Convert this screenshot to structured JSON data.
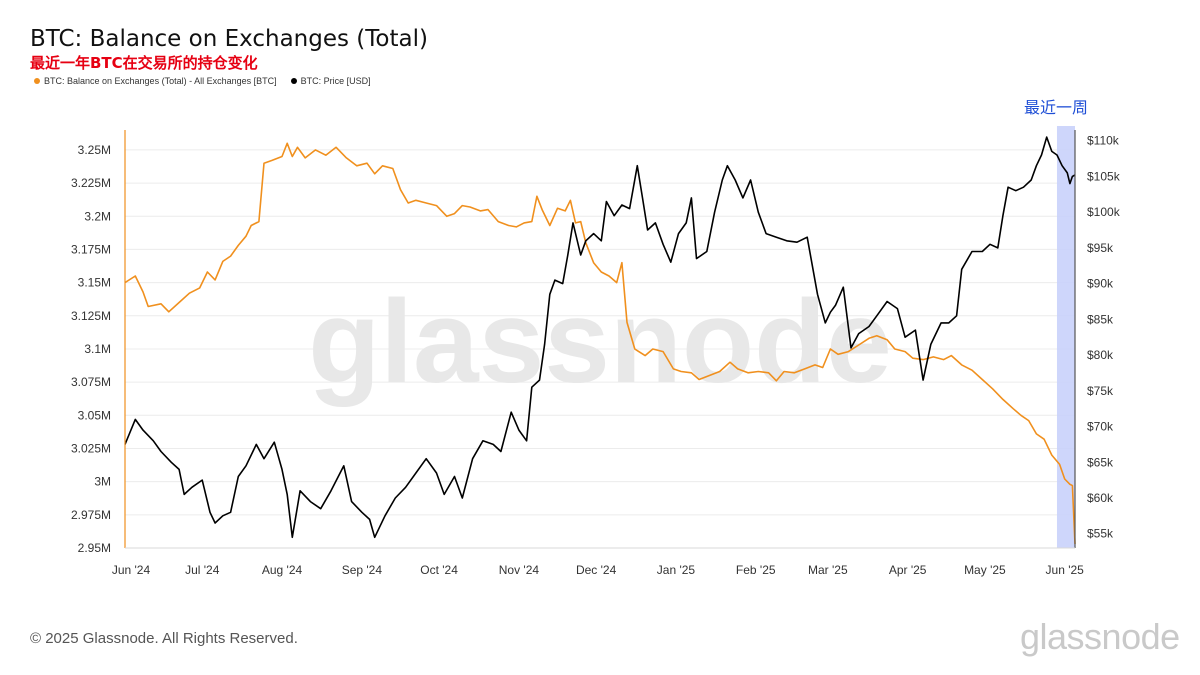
{
  "header": {
    "title": "BTC: Balance on Exchanges (Total)",
    "subtitle": "最近一年BTC在交易所的持仓变化"
  },
  "footer": {
    "copyright": "© 2025 Glassnode. All Rights Reserved.",
    "brand": "glassnode"
  },
  "colors": {
    "balance": "#f0901e",
    "price": "#000000",
    "highlight": "#c9d2fb",
    "annotation": "#1f4fd6"
  },
  "chart_data": {
    "type": "line",
    "title": "BTC: Balance on Exchanges (Total)",
    "subtitle": "最近一年BTC在交易所的持仓变化",
    "watermark": "glassnode",
    "legend_position": "top-left",
    "grid": true,
    "x_labels": [
      "Jun '24",
      "Jul '24",
      "Aug '24",
      "Sep '24",
      "Oct '24",
      "Nov '24",
      "Dec '24",
      "Jan '25",
      "Feb '25",
      "Mar '25",
      "Apr '25",
      "May '25",
      "Jun '25"
    ],
    "x_range": [
      "2024-06-01",
      "2025-06-05"
    ],
    "y_left": {
      "tick_labels": [
        "2.95M",
        "2.975M",
        "3M",
        "3.025M",
        "3.05M",
        "3.075M",
        "3.1M",
        "3.125M",
        "3.15M",
        "3.175M",
        "3.2M",
        "3.225M",
        "3.25M"
      ],
      "ylim": [
        2950000,
        3265000
      ]
    },
    "y_right": {
      "tick_labels": [
        "$55k",
        "$60k",
        "$65k",
        "$70k",
        "$75k",
        "$80k",
        "$85k",
        "$90k",
        "$95k",
        "$100k",
        "$105k",
        "$110k"
      ],
      "ylim": [
        53000,
        111500
      ]
    },
    "annotation": {
      "text": "最近一周",
      "x_start": "2025-05-29",
      "x_end": "2025-06-05"
    },
    "series": [
      {
        "name": "BTC: Balance on Exchanges (Total) - All Exchanges [BTC]",
        "axis": "left",
        "points": [
          [
            "2024-06-01",
            3150000
          ],
          [
            "2024-06-05",
            3155000
          ],
          [
            "2024-06-08",
            3143000
          ],
          [
            "2024-06-10",
            3132000
          ],
          [
            "2024-06-15",
            3134000
          ],
          [
            "2024-06-18",
            3128000
          ],
          [
            "2024-06-22",
            3135000
          ],
          [
            "2024-06-26",
            3142000
          ],
          [
            "2024-06-30",
            3146000
          ],
          [
            "2024-07-03",
            3158000
          ],
          [
            "2024-07-06",
            3152000
          ],
          [
            "2024-07-09",
            3166000
          ],
          [
            "2024-07-12",
            3170000
          ],
          [
            "2024-07-15",
            3178000
          ],
          [
            "2024-07-18",
            3185000
          ],
          [
            "2024-07-20",
            3193000
          ],
          [
            "2024-07-23",
            3196000
          ],
          [
            "2024-07-25",
            3240000
          ],
          [
            "2024-07-28",
            3242000
          ],
          [
            "2024-08-01",
            3245000
          ],
          [
            "2024-08-03",
            3255000
          ],
          [
            "2024-08-05",
            3245000
          ],
          [
            "2024-08-07",
            3252000
          ],
          [
            "2024-08-10",
            3244000
          ],
          [
            "2024-08-14",
            3250000
          ],
          [
            "2024-08-18",
            3246000
          ],
          [
            "2024-08-22",
            3252000
          ],
          [
            "2024-08-26",
            3244000
          ],
          [
            "2024-08-30",
            3238000
          ],
          [
            "2024-09-03",
            3240000
          ],
          [
            "2024-09-06",
            3232000
          ],
          [
            "2024-09-09",
            3238000
          ],
          [
            "2024-09-13",
            3236000
          ],
          [
            "2024-09-16",
            3220000
          ],
          [
            "2024-09-19",
            3210000
          ],
          [
            "2024-09-22",
            3212000
          ],
          [
            "2024-09-26",
            3210000
          ],
          [
            "2024-09-30",
            3208000
          ],
          [
            "2024-10-04",
            3200000
          ],
          [
            "2024-10-07",
            3202000
          ],
          [
            "2024-10-10",
            3208000
          ],
          [
            "2024-10-13",
            3207000
          ],
          [
            "2024-10-17",
            3204000
          ],
          [
            "2024-10-20",
            3205000
          ],
          [
            "2024-10-24",
            3196000
          ],
          [
            "2024-10-28",
            3193000
          ],
          [
            "2024-10-31",
            3192000
          ],
          [
            "2024-11-03",
            3195000
          ],
          [
            "2024-11-06",
            3196000
          ],
          [
            "2024-11-08",
            3215000
          ],
          [
            "2024-11-10",
            3205000
          ],
          [
            "2024-11-13",
            3193000
          ],
          [
            "2024-11-16",
            3206000
          ],
          [
            "2024-11-19",
            3204000
          ],
          [
            "2024-11-21",
            3212000
          ],
          [
            "2024-11-23",
            3195000
          ],
          [
            "2024-11-25",
            3196000
          ],
          [
            "2024-11-27",
            3180000
          ],
          [
            "2024-11-30",
            3165000
          ],
          [
            "2024-12-03",
            3158000
          ],
          [
            "2024-12-06",
            3155000
          ],
          [
            "2024-12-09",
            3150000
          ],
          [
            "2024-12-11",
            3165000
          ],
          [
            "2024-12-13",
            3120000
          ],
          [
            "2024-12-16",
            3100000
          ],
          [
            "2024-12-20",
            3095000
          ],
          [
            "2024-12-23",
            3100000
          ],
          [
            "2024-12-27",
            3098000
          ],
          [
            "2024-12-31",
            3085000
          ],
          [
            "2025-01-03",
            3083000
          ],
          [
            "2025-01-07",
            3082000
          ],
          [
            "2025-01-10",
            3077000
          ],
          [
            "2025-01-14",
            3080000
          ],
          [
            "2025-01-18",
            3083000
          ],
          [
            "2025-01-22",
            3090000
          ],
          [
            "2025-01-25",
            3085000
          ],
          [
            "2025-01-29",
            3082000
          ],
          [
            "2025-02-02",
            3083000
          ],
          [
            "2025-02-06",
            3082000
          ],
          [
            "2025-02-09",
            3076000
          ],
          [
            "2025-02-12",
            3083000
          ],
          [
            "2025-02-16",
            3082000
          ],
          [
            "2025-02-20",
            3085000
          ],
          [
            "2025-02-24",
            3088000
          ],
          [
            "2025-02-27",
            3086000
          ],
          [
            "2025-03-02",
            3100000
          ],
          [
            "2025-03-05",
            3096000
          ],
          [
            "2025-03-09",
            3098000
          ],
          [
            "2025-03-13",
            3103000
          ],
          [
            "2025-03-17",
            3108000
          ],
          [
            "2025-03-20",
            3110000
          ],
          [
            "2025-03-24",
            3107000
          ],
          [
            "2025-03-27",
            3100000
          ],
          [
            "2025-03-31",
            3098000
          ],
          [
            "2025-04-03",
            3093000
          ],
          [
            "2025-04-07",
            3092000
          ],
          [
            "2025-04-11",
            3094000
          ],
          [
            "2025-04-15",
            3092000
          ],
          [
            "2025-04-18",
            3095000
          ],
          [
            "2025-04-22",
            3088000
          ],
          [
            "2025-04-26",
            3084000
          ],
          [
            "2025-04-30",
            3077000
          ],
          [
            "2025-05-04",
            3070000
          ],
          [
            "2025-05-08",
            3062000
          ],
          [
            "2025-05-12",
            3055000
          ],
          [
            "2025-05-15",
            3050000
          ],
          [
            "2025-05-18",
            3046000
          ],
          [
            "2025-05-21",
            3036000
          ],
          [
            "2025-05-24",
            3032000
          ],
          [
            "2025-05-27",
            3020000
          ],
          [
            "2025-05-30",
            3013000
          ],
          [
            "2025-06-01",
            3002000
          ],
          [
            "2025-06-03",
            2998000
          ],
          [
            "2025-06-04",
            2997000
          ],
          [
            "2025-06-05",
            2953000
          ]
        ]
      },
      {
        "name": "BTC: Price [USD]",
        "axis": "right",
        "points": [
          [
            "2024-06-01",
            67500
          ],
          [
            "2024-06-05",
            71000
          ],
          [
            "2024-06-08",
            69500
          ],
          [
            "2024-06-12",
            68000
          ],
          [
            "2024-06-15",
            66500
          ],
          [
            "2024-06-19",
            65000
          ],
          [
            "2024-06-22",
            64000
          ],
          [
            "2024-06-24",
            60500
          ],
          [
            "2024-06-27",
            61500
          ],
          [
            "2024-07-01",
            62500
          ],
          [
            "2024-07-04",
            58000
          ],
          [
            "2024-07-06",
            56500
          ],
          [
            "2024-07-09",
            57500
          ],
          [
            "2024-07-12",
            58000
          ],
          [
            "2024-07-15",
            63000
          ],
          [
            "2024-07-18",
            64500
          ],
          [
            "2024-07-22",
            67500
          ],
          [
            "2024-07-25",
            65500
          ],
          [
            "2024-07-29",
            67800
          ],
          [
            "2024-08-01",
            64000
          ],
          [
            "2024-08-03",
            60500
          ],
          [
            "2024-08-05",
            54500
          ],
          [
            "2024-08-08",
            61000
          ],
          [
            "2024-08-12",
            59500
          ],
          [
            "2024-08-16",
            58500
          ],
          [
            "2024-08-20",
            61000
          ],
          [
            "2024-08-25",
            64500
          ],
          [
            "2024-08-28",
            59500
          ],
          [
            "2024-09-01",
            58000
          ],
          [
            "2024-09-04",
            57000
          ],
          [
            "2024-09-06",
            54500
          ],
          [
            "2024-09-10",
            57500
          ],
          [
            "2024-09-14",
            60000
          ],
          [
            "2024-09-18",
            61500
          ],
          [
            "2024-09-22",
            63500
          ],
          [
            "2024-09-26",
            65500
          ],
          [
            "2024-09-30",
            63500
          ],
          [
            "2024-10-03",
            60500
          ],
          [
            "2024-10-07",
            63000
          ],
          [
            "2024-10-10",
            60000
          ],
          [
            "2024-10-14",
            65500
          ],
          [
            "2024-10-18",
            68000
          ],
          [
            "2024-10-22",
            67500
          ],
          [
            "2024-10-25",
            66500
          ],
          [
            "2024-10-29",
            72000
          ],
          [
            "2024-11-01",
            69500
          ],
          [
            "2024-11-04",
            68000
          ],
          [
            "2024-11-06",
            75500
          ],
          [
            "2024-11-09",
            76500
          ],
          [
            "2024-11-11",
            81500
          ],
          [
            "2024-11-13",
            88500
          ],
          [
            "2024-11-15",
            90500
          ],
          [
            "2024-11-18",
            90000
          ],
          [
            "2024-11-20",
            94000
          ],
          [
            "2024-11-22",
            98500
          ],
          [
            "2024-11-25",
            94000
          ],
          [
            "2024-11-27",
            96000
          ],
          [
            "2024-11-30",
            97000
          ],
          [
            "2024-12-03",
            96000
          ],
          [
            "2024-12-05",
            101500
          ],
          [
            "2024-12-08",
            99500
          ],
          [
            "2024-12-11",
            101000
          ],
          [
            "2024-12-14",
            100500
          ],
          [
            "2024-12-17",
            106500
          ],
          [
            "2024-12-19",
            102000
          ],
          [
            "2024-12-21",
            97500
          ],
          [
            "2024-12-24",
            98500
          ],
          [
            "2024-12-27",
            95500
          ],
          [
            "2024-12-30",
            93000
          ],
          [
            "2025-01-02",
            97000
          ],
          [
            "2025-01-05",
            98500
          ],
          [
            "2025-01-07",
            102000
          ],
          [
            "2025-01-09",
            93500
          ],
          [
            "2025-01-13",
            94500
          ],
          [
            "2025-01-16",
            100000
          ],
          [
            "2025-01-19",
            104500
          ],
          [
            "2025-01-21",
            106500
          ],
          [
            "2025-01-24",
            104500
          ],
          [
            "2025-01-27",
            102000
          ],
          [
            "2025-01-30",
            104500
          ],
          [
            "2025-02-02",
            100000
          ],
          [
            "2025-02-05",
            97000
          ],
          [
            "2025-02-09",
            96500
          ],
          [
            "2025-02-13",
            96000
          ],
          [
            "2025-02-17",
            95800
          ],
          [
            "2025-02-21",
            96500
          ],
          [
            "2025-02-25",
            88500
          ],
          [
            "2025-02-28",
            84500
          ],
          [
            "2025-03-02",
            86000
          ],
          [
            "2025-03-04",
            87000
          ],
          [
            "2025-03-07",
            89500
          ],
          [
            "2025-03-10",
            81000
          ],
          [
            "2025-03-13",
            83000
          ],
          [
            "2025-03-17",
            84000
          ],
          [
            "2025-03-20",
            85500
          ],
          [
            "2025-03-24",
            87500
          ],
          [
            "2025-03-28",
            86500
          ],
          [
            "2025-03-31",
            82500
          ],
          [
            "2025-04-04",
            83500
          ],
          [
            "2025-04-07",
            76500
          ],
          [
            "2025-04-10",
            81500
          ],
          [
            "2025-04-14",
            84500
          ],
          [
            "2025-04-17",
            84500
          ],
          [
            "2025-04-20",
            85500
          ],
          [
            "2025-04-22",
            92000
          ],
          [
            "2025-04-26",
            94500
          ],
          [
            "2025-04-30",
            94500
          ],
          [
            "2025-05-03",
            95500
          ],
          [
            "2025-05-06",
            95000
          ],
          [
            "2025-05-08",
            99500
          ],
          [
            "2025-05-10",
            103500
          ],
          [
            "2025-05-13",
            103000
          ],
          [
            "2025-05-16",
            103500
          ],
          [
            "2025-05-19",
            104500
          ],
          [
            "2025-05-21",
            106500
          ],
          [
            "2025-05-23",
            108000
          ],
          [
            "2025-05-25",
            110500
          ],
          [
            "2025-05-27",
            108500
          ],
          [
            "2025-05-29",
            108000
          ],
          [
            "2025-05-31",
            106500
          ],
          [
            "2025-06-02",
            105500
          ],
          [
            "2025-06-03",
            104000
          ],
          [
            "2025-06-04",
            105000
          ],
          [
            "2025-06-05",
            105200
          ]
        ]
      }
    ]
  }
}
